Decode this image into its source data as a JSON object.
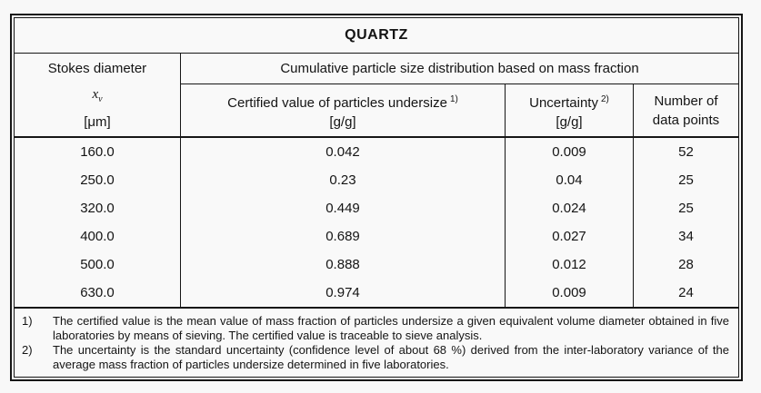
{
  "table": {
    "title": "QUARTZ",
    "header": {
      "col1_title": "Stokes diameter",
      "col1_symbol_base": "x",
      "col1_symbol_sub": "v",
      "col1_unit": "[μm]",
      "group_title": "Cumulative particle size distribution based on mass fraction",
      "col2_title": "Certified value of particles undersize",
      "col2_footnote_mark": "1)",
      "col2_unit": "[g/g]",
      "col3_title": "Uncertainty",
      "col3_footnote_mark": "2)",
      "col3_unit": "[g/g]",
      "col4_line1": "Number of",
      "col4_line2": "data points"
    },
    "rows": [
      {
        "diameter": "160.0",
        "certified": "0.042",
        "uncertainty": "0.009",
        "points": "52"
      },
      {
        "diameter": "250.0",
        "certified": "0.23",
        "uncertainty": "0.04",
        "points": "25"
      },
      {
        "diameter": "320.0",
        "certified": "0.449",
        "uncertainty": "0.024",
        "points": "25"
      },
      {
        "diameter": "400.0",
        "certified": "0.689",
        "uncertainty": "0.027",
        "points": "34"
      },
      {
        "diameter": "500.0",
        "certified": "0.888",
        "uncertainty": "0.012",
        "points": "28"
      },
      {
        "diameter": "630.0",
        "certified": "0.974",
        "uncertainty": "0.009",
        "points": "24"
      }
    ],
    "footnotes": [
      {
        "num": "1)",
        "text": "The certified value is the mean value of mass fraction of particles undersize a given equivalent volume diameter obtained in five laboratories by means of sieving. The certified value is traceable to sieve analysis."
      },
      {
        "num": "2)",
        "text": "The uncertainty is the standard uncertainty (confidence level of about 68 %) derived from the inter-laboratory variance of the average mass fraction of particles undersize determined in five laboratories."
      }
    ]
  },
  "chart_data": {
    "type": "table",
    "title": "QUARTZ",
    "columns": [
      "Stokes diameter x_v [μm]",
      "Certified value of particles undersize [g/g]",
      "Uncertainty [g/g]",
      "Number of data points"
    ],
    "rows": [
      [
        160.0,
        0.042,
        0.009,
        52
      ],
      [
        250.0,
        0.23,
        0.04,
        25
      ],
      [
        320.0,
        0.449,
        0.024,
        25
      ],
      [
        400.0,
        0.689,
        0.027,
        34
      ],
      [
        500.0,
        0.888,
        0.012,
        28
      ],
      [
        630.0,
        0.974,
        0.009,
        24
      ]
    ]
  },
  "colors": {
    "background": "#f8f8f8",
    "border": "#161616",
    "text": "#141414"
  }
}
